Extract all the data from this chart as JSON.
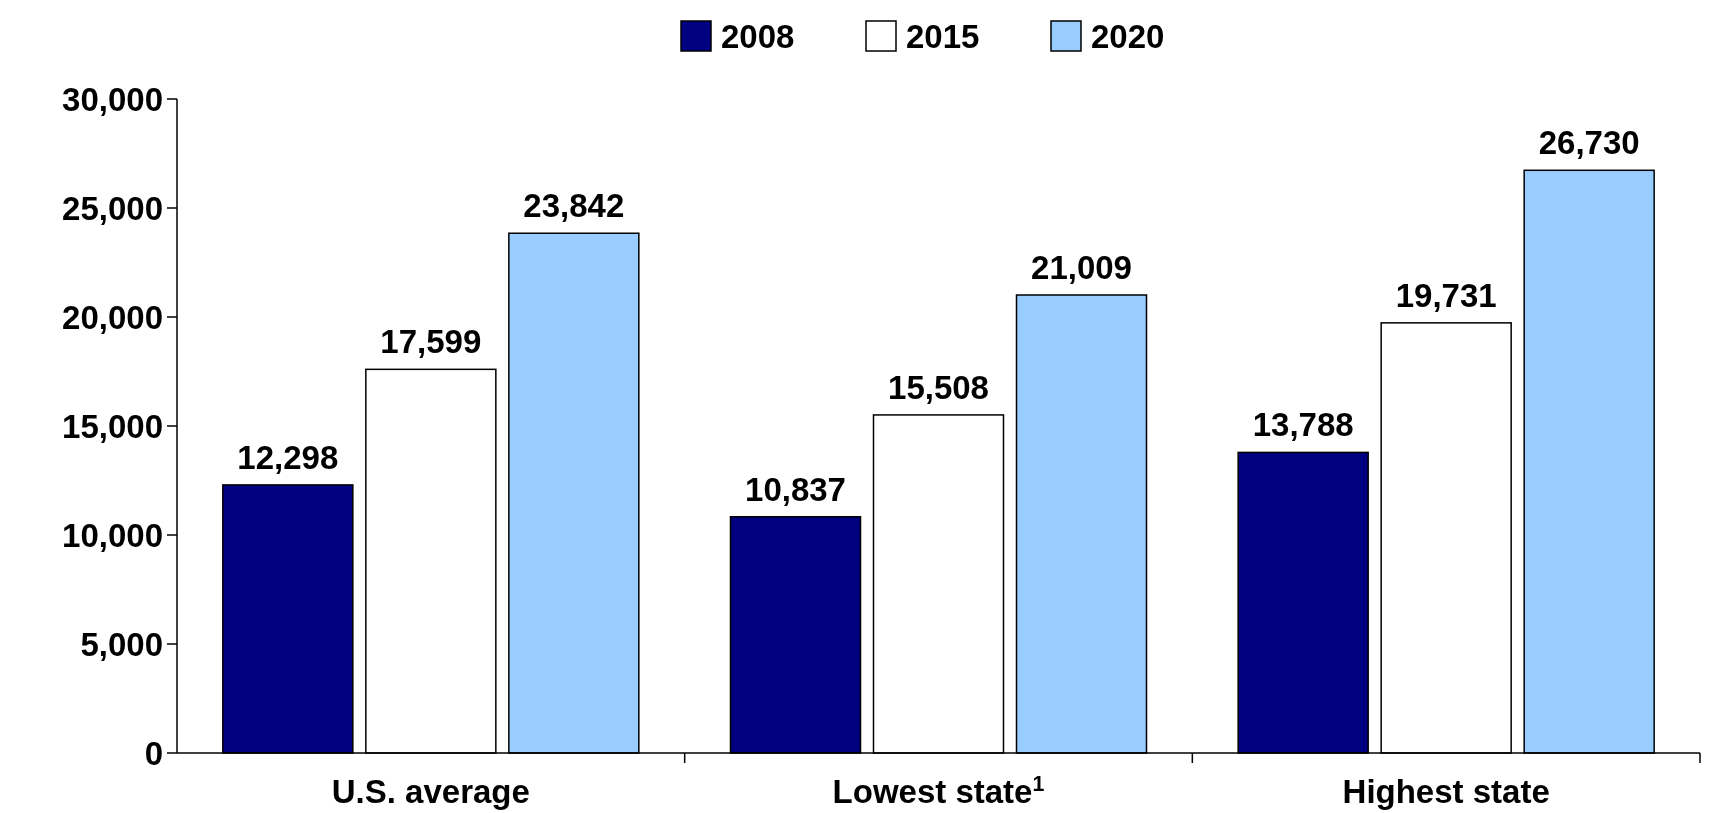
{
  "chart_data": {
    "type": "bar",
    "categories": [
      "U.S. average",
      "Lowest state$^{1}$",
      "Highest state"
    ],
    "series": [
      {
        "name": "2008",
        "color": "#000080",
        "values": [
          12298,
          10837,
          13788
        ]
      },
      {
        "name": "2015",
        "color": "#ffffff",
        "values": [
          17599,
          15508,
          19731
        ]
      },
      {
        "name": "2020",
        "color": "#99ccff",
        "values": [
          23842,
          21009,
          26730
        ]
      }
    ],
    "ylim": [
      0,
      30000
    ],
    "yticks": [
      {
        "value": 0,
        "label": "0"
      },
      {
        "value": 5000,
        "label": "5,000"
      },
      {
        "value": 10000,
        "label": "10,000"
      },
      {
        "value": 15000,
        "label": "15,000"
      },
      {
        "value": 20000,
        "label": "20,000"
      },
      {
        "value": 25000,
        "label": "25,000"
      },
      {
        "value": 30000,
        "label": "30,000"
      }
    ],
    "value_labels": [
      [
        "12,298",
        "10,837",
        "13,788"
      ],
      [
        "17,599",
        "15,508",
        "19,731"
      ],
      [
        "23,842",
        "21,009",
        "26,730"
      ]
    ],
    "legend": "top",
    "grid": false
  }
}
